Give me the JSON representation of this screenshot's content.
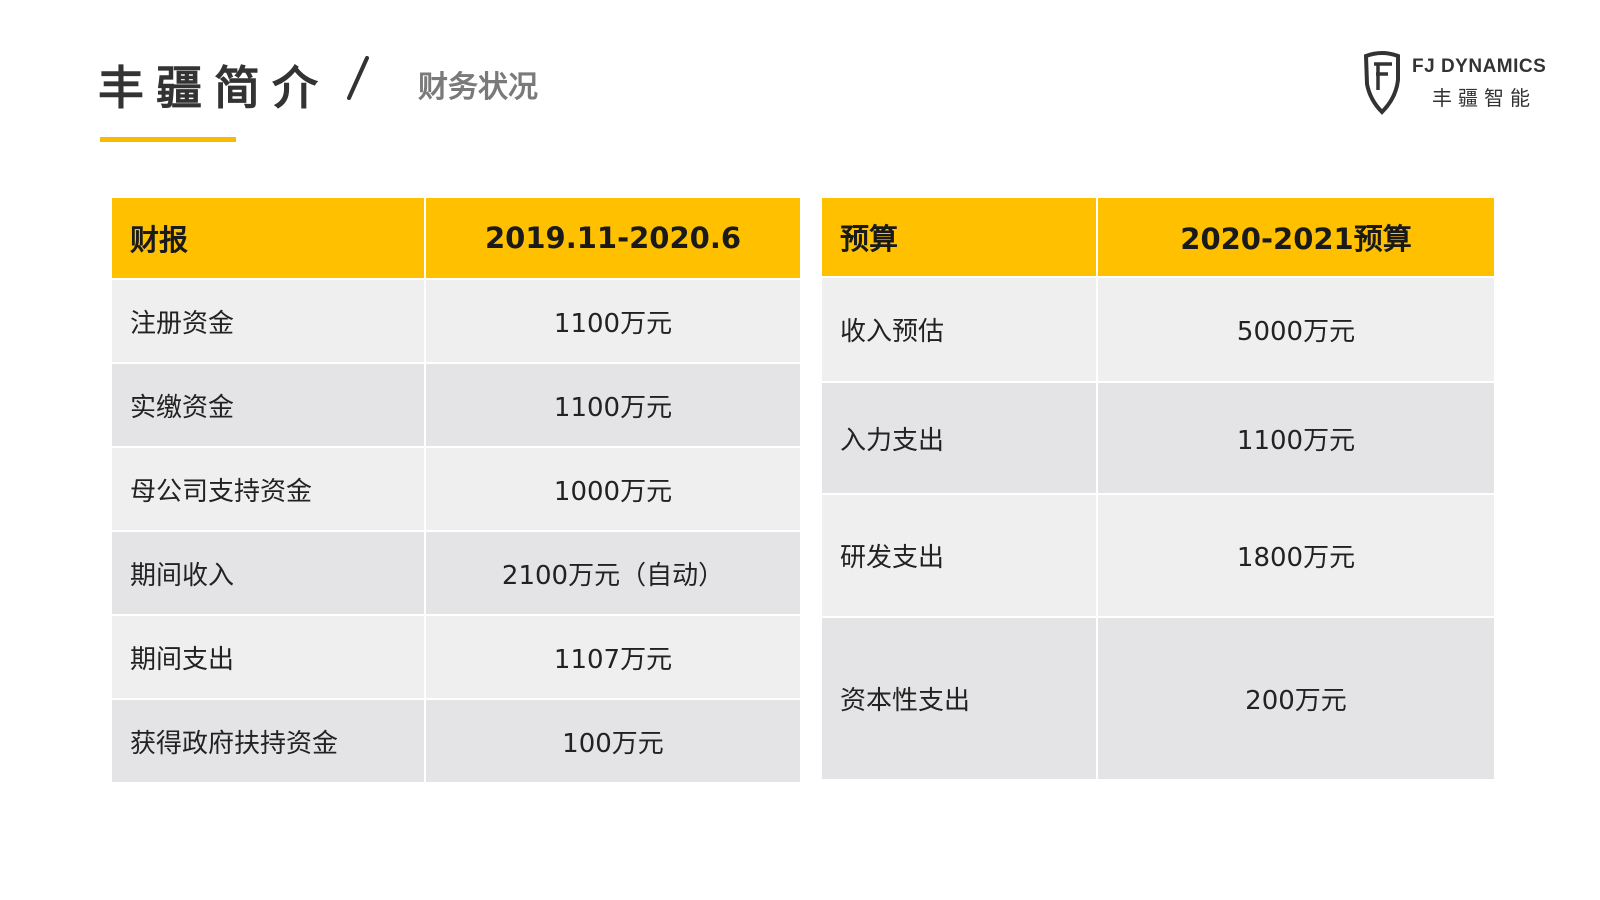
{
  "header": {
    "title": "丰疆简介",
    "subtitle": "财务状况"
  },
  "logo": {
    "text_en": "FJ DYNAMICS",
    "text_cn": "丰疆智能",
    "icon": "shield-logo-icon"
  },
  "colors": {
    "accent": "#FFC000",
    "underline": "#F7BB00",
    "row_light": "#EFEFEF",
    "row_dark": "#E4E4E6"
  },
  "financial_table": {
    "headers": [
      "财报",
      "2019.11-2020.6"
    ],
    "rows": [
      [
        "注册资金",
        "1100万元"
      ],
      [
        "实缴资金",
        "1100万元"
      ],
      [
        "母公司支持资金",
        "1000万元"
      ],
      [
        "期间收入",
        "2100万元（自动）"
      ],
      [
        "期间支出",
        "1107万元"
      ],
      [
        "获得政府扶持资金",
        "100万元"
      ]
    ]
  },
  "budget_table": {
    "headers": [
      "预算",
      "2020-2021预算"
    ],
    "rows": [
      [
        "收入预估",
        "5000万元"
      ],
      [
        "入力支出",
        "1100万元"
      ],
      [
        "研发支出",
        "1800万元"
      ],
      [
        "资本性支出",
        "200万元"
      ]
    ]
  }
}
